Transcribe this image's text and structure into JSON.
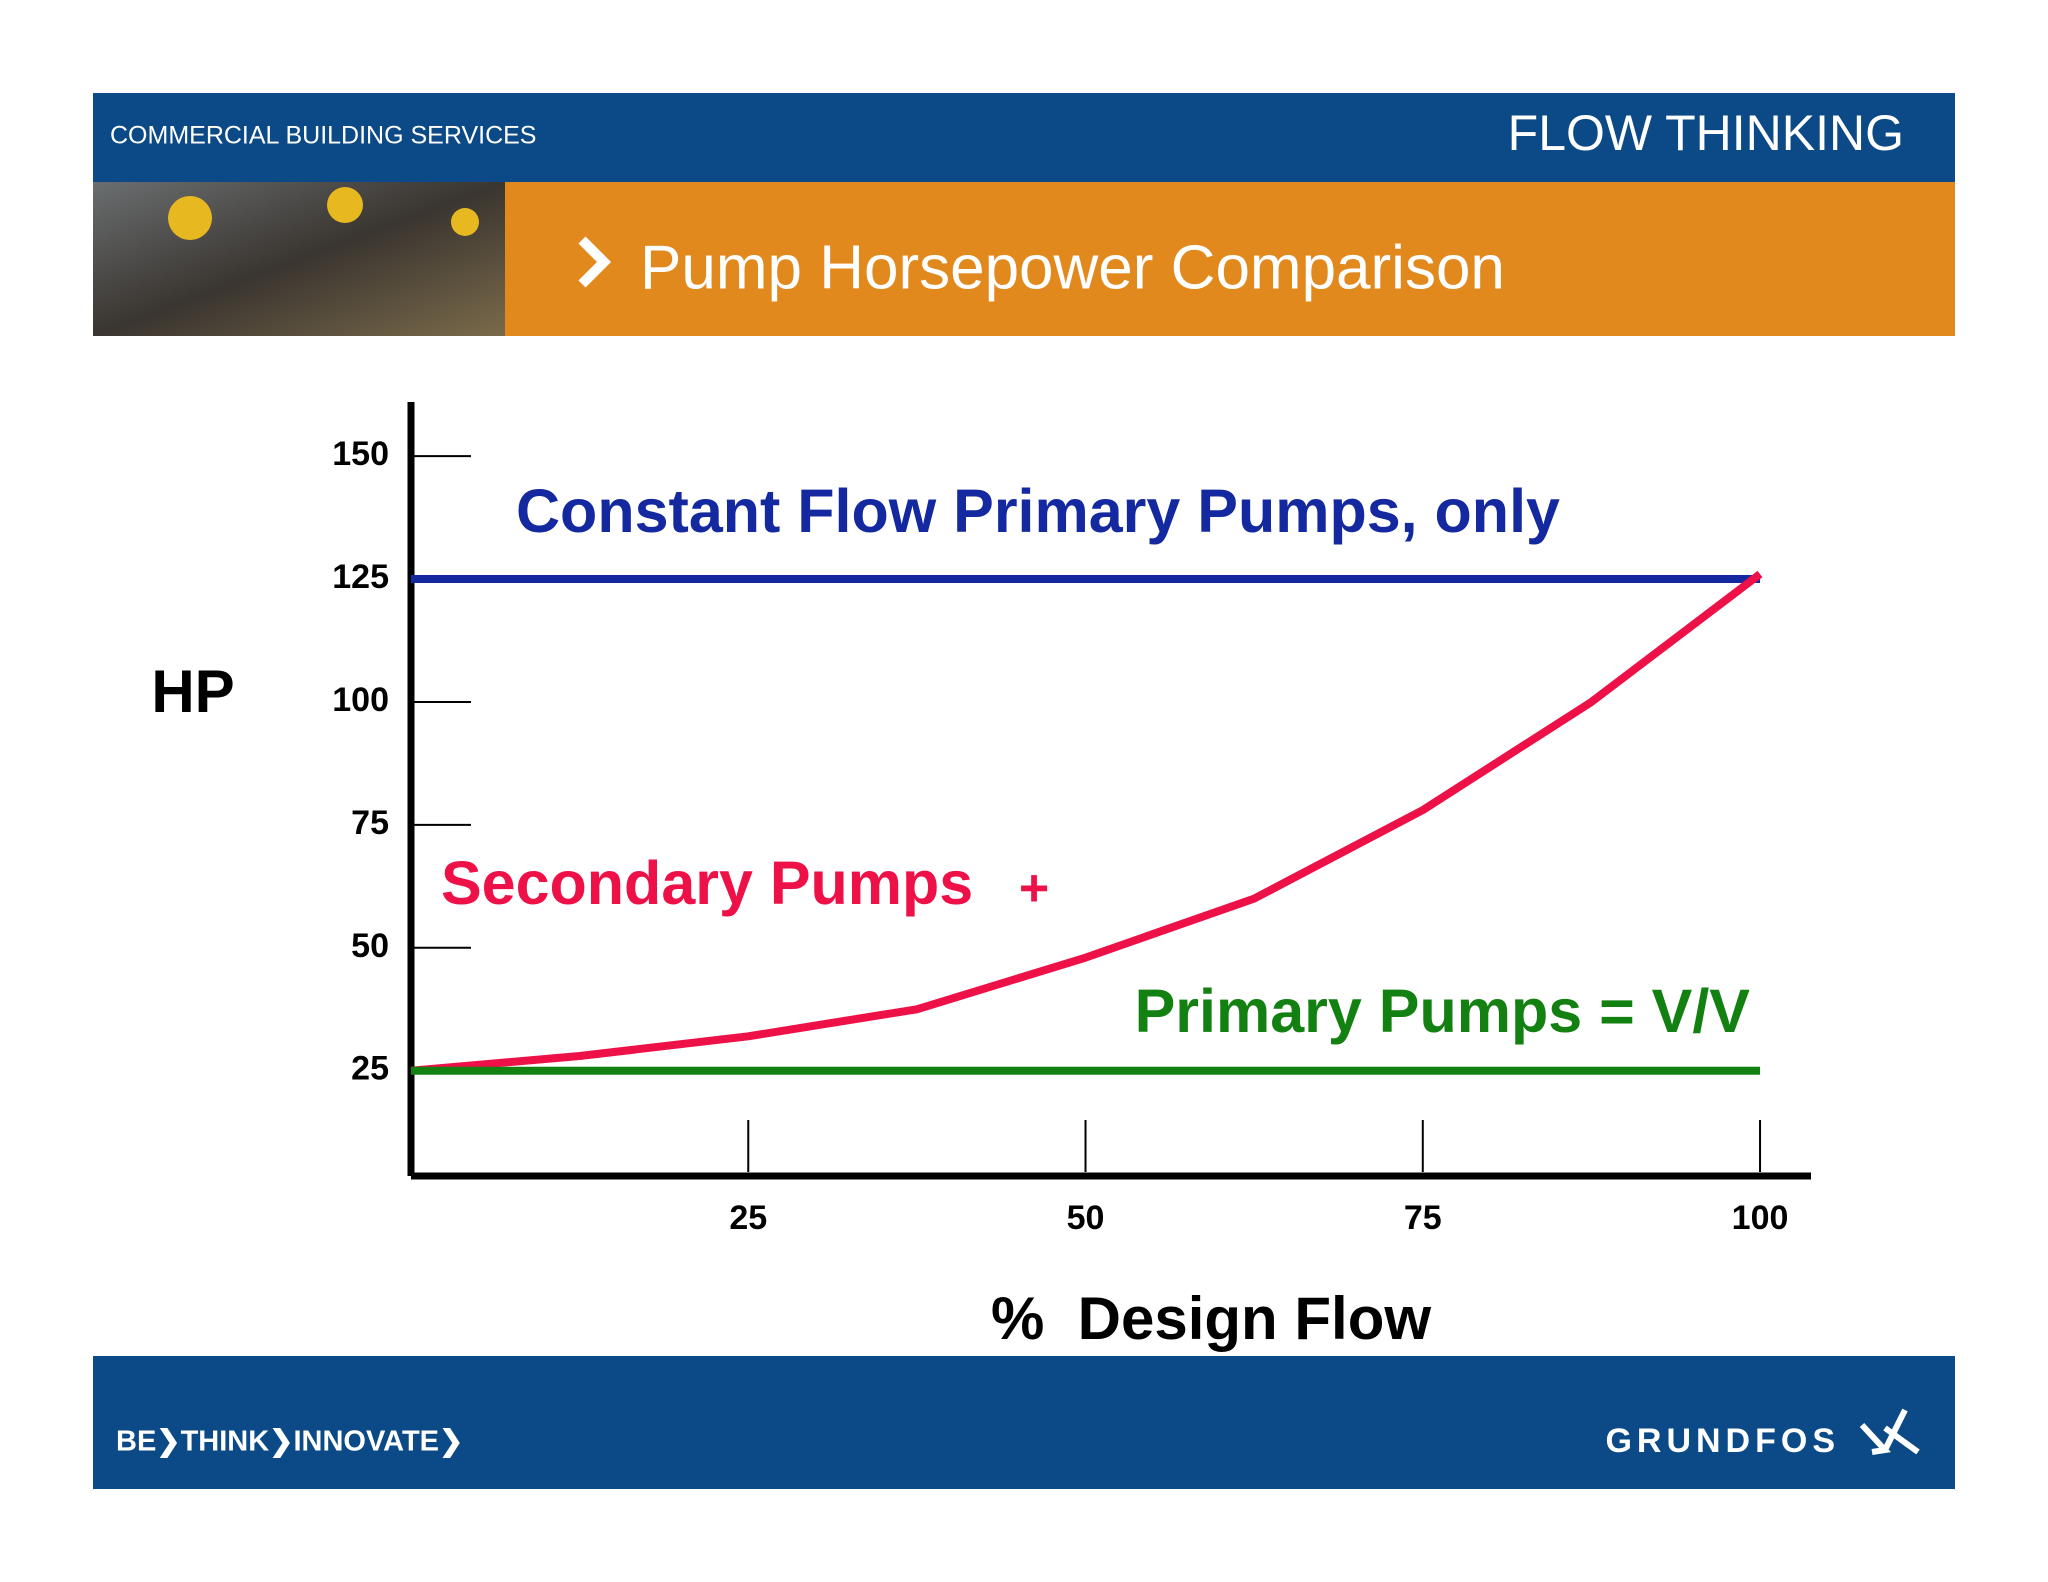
{
  "header": {
    "left": "COMMERCIAL BUILDING SERVICES",
    "right": "FLOW THINKING",
    "title": "Pump Horsepower Comparison"
  },
  "footer": {
    "slogan": "BE❯THINK❯INNOVATE❯",
    "brand": "GRUNDFOS"
  },
  "chart_data": {
    "type": "line",
    "x_label": "%  Design Flow",
    "y_label": "HP",
    "xlim": [
      0,
      104
    ],
    "ylim": [
      4,
      161
    ],
    "xticks": [
      25,
      50,
      75,
      100
    ],
    "yticks": [
      25,
      50,
      75,
      100,
      125,
      150
    ],
    "annotations": [
      "+"
    ],
    "series": [
      {
        "name": "Constant Flow Primary Pumps, only",
        "color": "#1428a0",
        "x": [
          0,
          100
        ],
        "values": [
          125,
          125
        ]
      },
      {
        "name": "Secondary Pumps",
        "color": "#ee1148",
        "x": [
          0,
          12.5,
          25,
          37.5,
          50,
          62.5,
          75,
          87.5,
          100
        ],
        "values": [
          25,
          28,
          32,
          37.5,
          48,
          60,
          78,
          100,
          126
        ]
      },
      {
        "name": "Primary Pumps = V/V",
        "color": "#138012",
        "x": [
          0,
          100
        ],
        "values": [
          25,
          25
        ]
      }
    ]
  }
}
